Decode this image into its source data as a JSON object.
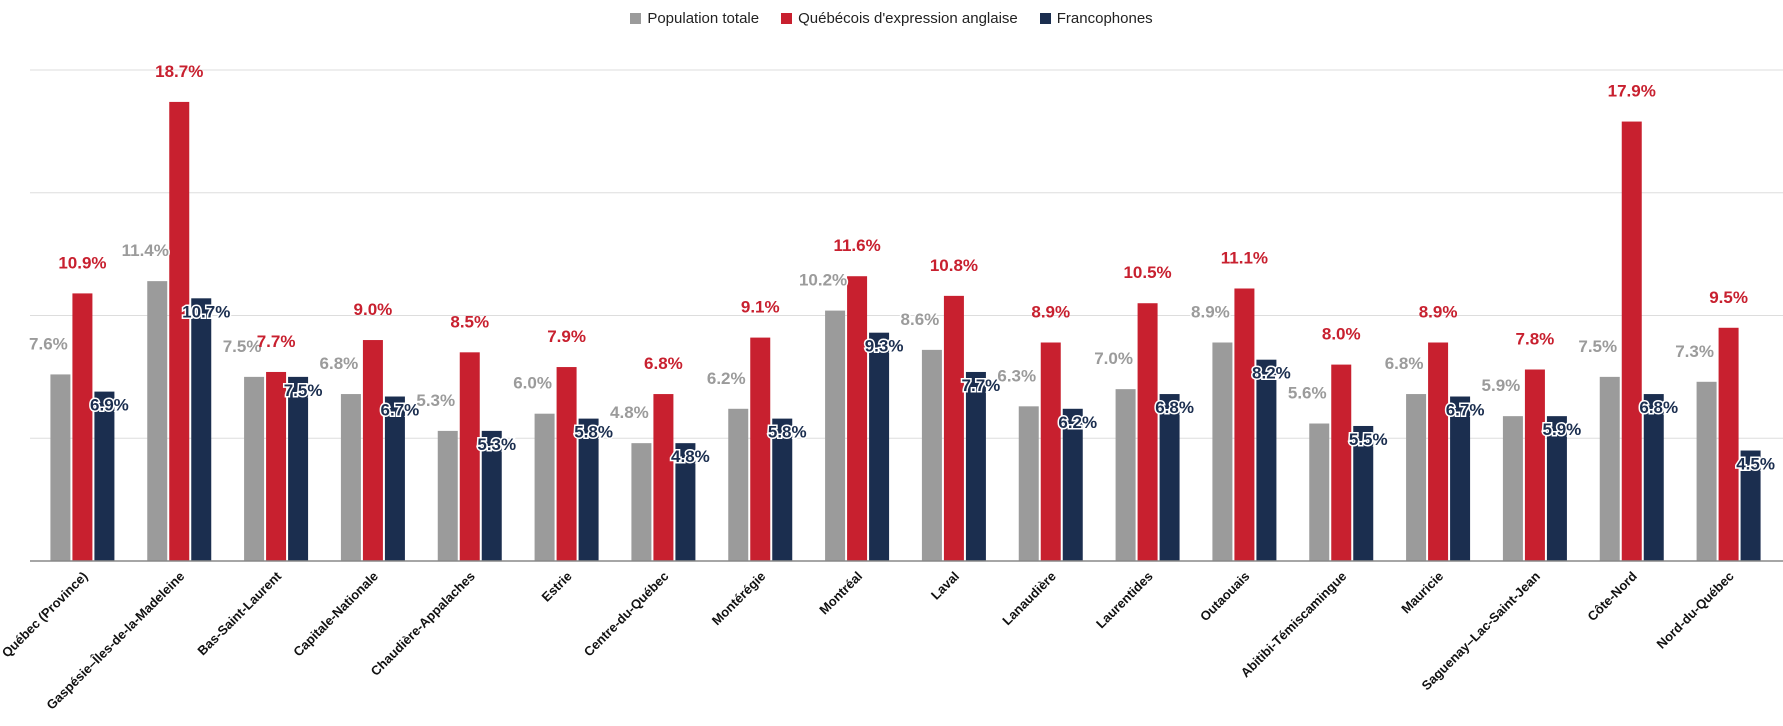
{
  "chart_data": {
    "type": "bar",
    "legend_position": "top-center",
    "grid": true,
    "ylim": [
      0,
      20
    ],
    "categories": [
      "Québec (Province)",
      "Gaspésie–Îles-de-la-Madeleine",
      "Bas-Saint-Laurent",
      "Capitale-Nationale",
      "Chaudière-Appalaches",
      "Estrie",
      "Centre-du-Québec",
      "Montérégie",
      "Montréal",
      "Laval",
      "Lanaudière",
      "Laurentides",
      "Outaouais",
      "Abitibi-Témiscamingue",
      "Mauricie",
      "Saguenay–Lac-Saint-Jean",
      "Côte-Nord",
      "Nord-du-Québec"
    ],
    "series": [
      {
        "name": "Population totale",
        "color": "#9b9b9b",
        "values": [
          7.6,
          11.4,
          7.5,
          6.8,
          5.3,
          6.0,
          4.8,
          6.2,
          10.2,
          8.6,
          6.3,
          7.0,
          8.9,
          5.6,
          6.8,
          5.9,
          7.5,
          7.3
        ],
        "labels": [
          "7.6%",
          "11.4%",
          "7.5%",
          "6.8%",
          "5.3%",
          "6.0%",
          "4.8%",
          "6.2%",
          "10.2%",
          "8.6%",
          "6.3%",
          "7.0%",
          "8.9%",
          "5.6%",
          "6.8%",
          "5.9%",
          "7.5%",
          "7.3%"
        ]
      },
      {
        "name": "Québécois d'expression anglaise",
        "color": "#c8202f",
        "values": [
          10.9,
          18.7,
          7.7,
          9.0,
          8.5,
          7.9,
          6.8,
          9.1,
          11.6,
          10.8,
          8.9,
          10.5,
          11.1,
          8.0,
          8.9,
          7.8,
          17.9,
          9.5
        ],
        "labels": [
          "10.9%",
          "18.7%",
          "7.7%",
          "9.0%",
          "8.5%",
          "7.9%",
          "6.8%",
          "9.1%",
          "11.6%",
          "10.8%",
          "8.9%",
          "10.5%",
          "11.1%",
          "8.0%",
          "8.9%",
          "7.8%",
          "17.9%",
          "9.5%"
        ]
      },
      {
        "name": "Francophones",
        "color": "#1b2e4f",
        "values": [
          6.9,
          10.7,
          7.5,
          6.7,
          5.3,
          5.8,
          4.8,
          5.8,
          9.3,
          7.7,
          6.2,
          6.8,
          8.2,
          5.5,
          6.7,
          5.9,
          6.8,
          4.5
        ],
        "labels": [
          "6.9%",
          "10.7%",
          "7.5%",
          "6.7%",
          "5.3%",
          "5.8%",
          "4.8%",
          "5.8%",
          "9.3%",
          "7.7%",
          "6.2%",
          "6.8%",
          "8.2%",
          "5.5%",
          "6.7%",
          "5.9%",
          "6.8%",
          "4.5%"
        ]
      }
    ]
  }
}
